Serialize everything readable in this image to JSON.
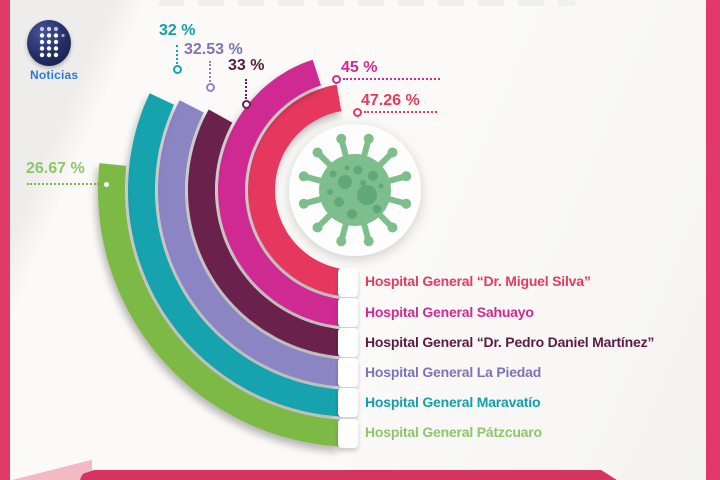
{
  "brand": {
    "logo_text": "Noticias"
  },
  "palette": {
    "edge_bar": "#e23a68",
    "bottom_banner": "#d83463",
    "bottom_wedge": "#f3bac6",
    "background": "#fbfaf9",
    "logo_navy": "#232e63",
    "logo_blue": "#2c79d8",
    "virus_body": "#7dbe8c",
    "virus_spots": "#5ba672",
    "hub_circle": "#fdfdfd"
  },
  "chart_data": {
    "type": "radial-bar",
    "unit": "%",
    "start_angle_deg": 270,
    "sweep_direction": "bottom-left-top",
    "center_icon": "coronavirus",
    "series": [
      {
        "id": "miguel-silva",
        "name": "Hospital General “Dr. Miguel Silva”",
        "value": 47.26,
        "pct_label": "47.26 %",
        "color": "#e6395e",
        "text_color": "#e6395e"
      },
      {
        "id": "sahuayo",
        "name": "Hospital General Sahuayo",
        "value": 45,
        "pct_label": "45 %",
        "color": "#cf2a92",
        "text_color": "#d02a92"
      },
      {
        "id": "pedro-daniel-martinez",
        "name": "Hospital General “Dr. Pedro Daniel Martínez”",
        "value": 33,
        "pct_label": "33 %",
        "color": "#6b214e",
        "text_color": "#5c1b42"
      },
      {
        "id": "la-piedad",
        "name": "Hospital General La Piedad",
        "value": 32.53,
        "pct_label": "32.53 %",
        "color": "#8b85c4",
        "text_color": "#7c74b5"
      },
      {
        "id": "maravatio",
        "name": "Hospital General Maravatío",
        "value": 32,
        "pct_label": "32 %",
        "color": "#12a3ad",
        "text_color": "#12a0aa"
      },
      {
        "id": "patzcuaro",
        "name": "Hospital General Pátzcuaro",
        "value": 26.67,
        "pct_label": "26.67 %",
        "color": "#7cb945",
        "text_color": "#8fc56b"
      }
    ]
  }
}
